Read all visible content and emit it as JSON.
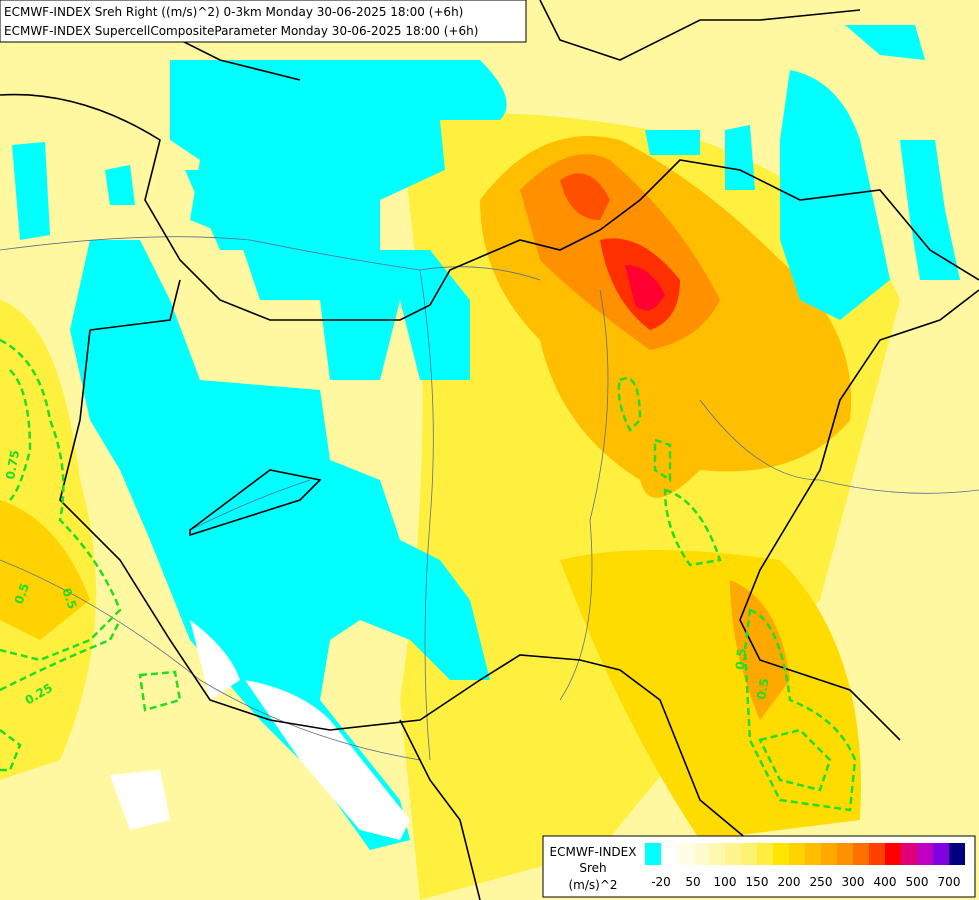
{
  "header": {
    "lines": [
      "ECMWF-INDEX Sreh Right ((m/s)^2) 0-3km Monday 30-06-2025 18:00 (+6h)",
      "ECMWF-INDEX SupercellCompositeParameter Monday 30-06-2025 18:00 (+6h)"
    ]
  },
  "contour_labels": [
    0.75,
    0.5,
    0.25,
    0.5,
    0.5,
    0.5
  ],
  "legend": {
    "title": "ECMWF-INDEX",
    "variable": "Sreh",
    "unit": "(m/s)^2",
    "colors": [
      "#00ffff",
      "#ffffff",
      "#fffde8",
      "#fffbd0",
      "#fff8b0",
      "#fff590",
      "#fff270",
      "#ffee40",
      "#ffe600",
      "#ffd200",
      "#ffbe00",
      "#ffa800",
      "#ff9000",
      "#ff7000",
      "#ff4000",
      "#ff0000",
      "#e0007a",
      "#c000c0",
      "#8000e0",
      "#000080"
    ],
    "ticks": [
      -20,
      50,
      100,
      150,
      200,
      250,
      300,
      400,
      500,
      700
    ]
  }
}
